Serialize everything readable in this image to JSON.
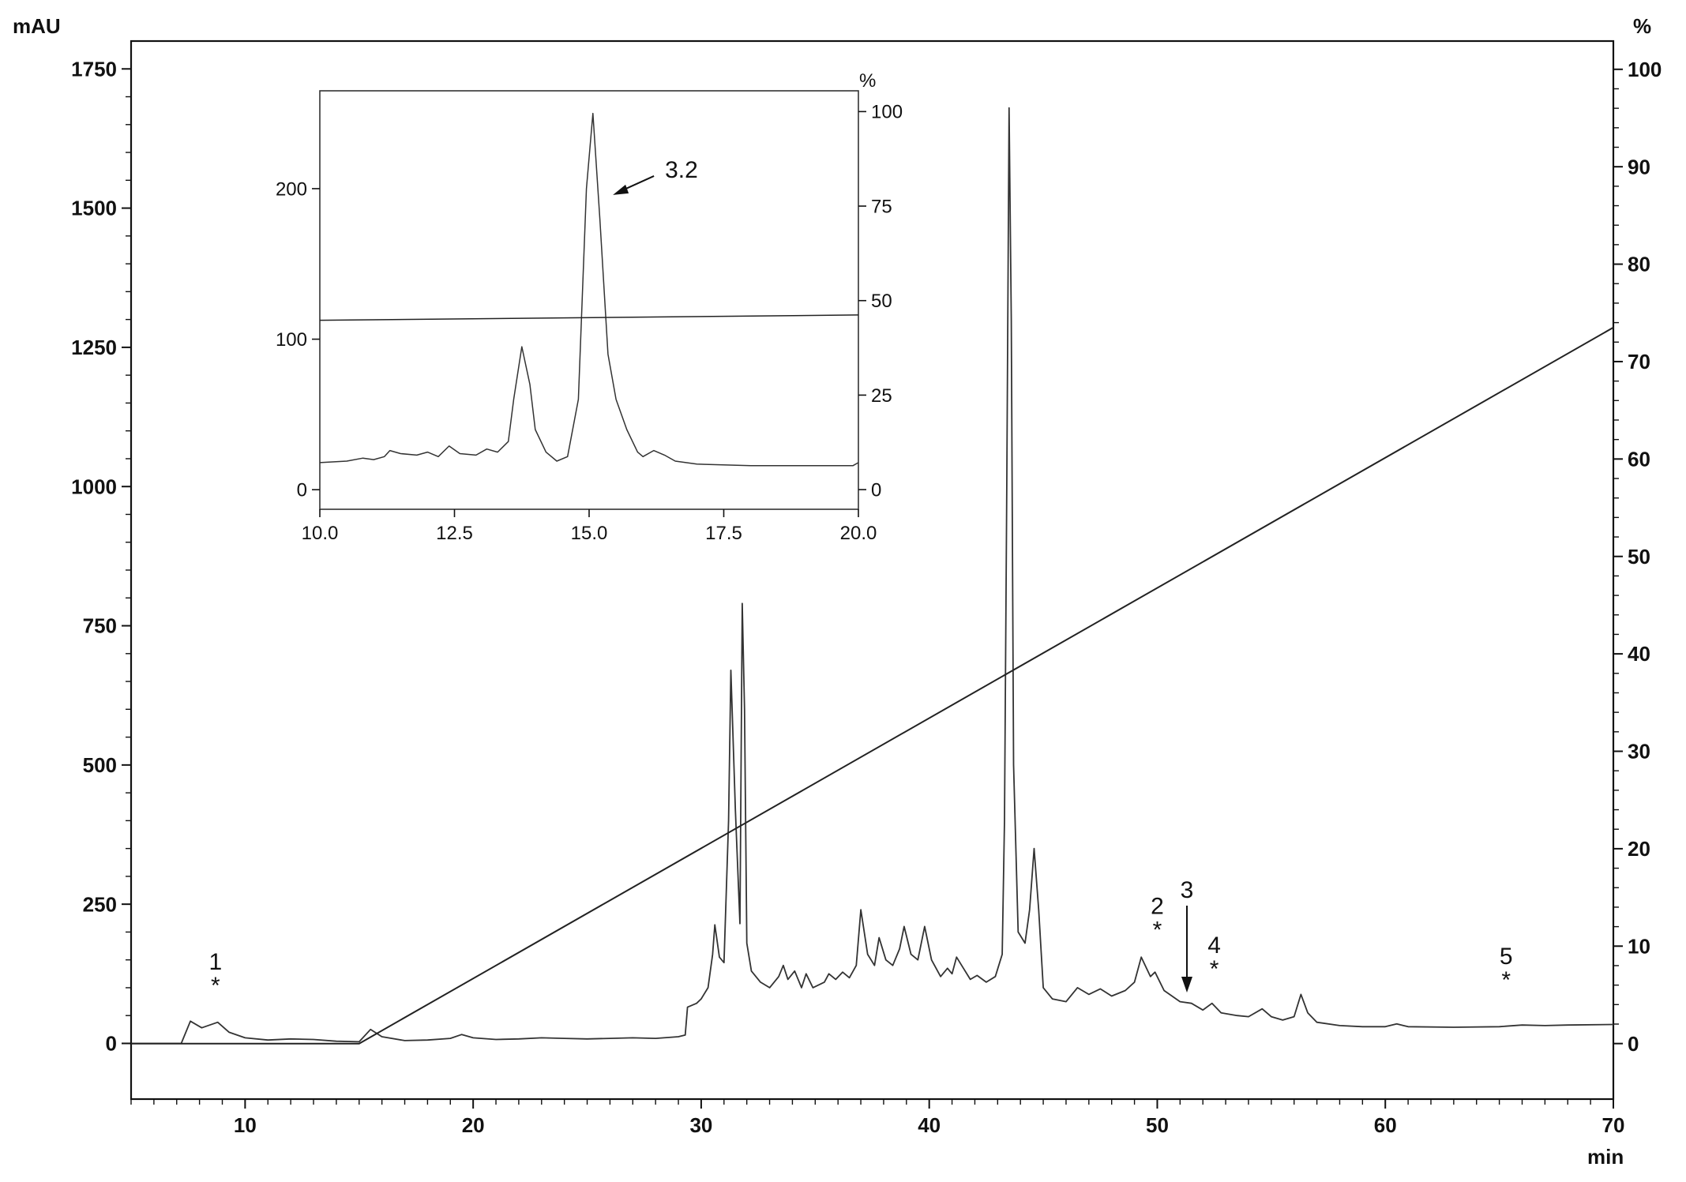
{
  "chart_data": [
    {
      "type": "line",
      "title": "",
      "xlabel": "min",
      "ylabel": "mAU",
      "y2label": "%",
      "xlim": [
        5,
        70
      ],
      "ylim": [
        -100,
        1800
      ],
      "y2lim": [
        -5.7,
        102.9
      ],
      "xticks": [
        10,
        20,
        30,
        40,
        50,
        60,
        70
      ],
      "yticks": [
        0,
        250,
        500,
        750,
        1000,
        1250,
        1500,
        1750
      ],
      "y2ticks": [
        0,
        10,
        20,
        30,
        40,
        50,
        60,
        70,
        80,
        90,
        100
      ],
      "series": [
        {
          "role": "chromatogram",
          "points": [
            [
              5,
              0
            ],
            [
              7.2,
              0
            ],
            [
              7.6,
              40
            ],
            [
              8.1,
              28
            ],
            [
              8.8,
              38
            ],
            [
              9.3,
              20
            ],
            [
              10,
              10
            ],
            [
              11,
              6
            ],
            [
              12,
              8
            ],
            [
              13,
              7
            ],
            [
              14,
              4
            ],
            [
              15,
              3
            ],
            [
              15.5,
              25
            ],
            [
              16,
              12
            ],
            [
              17,
              5
            ],
            [
              18,
              6
            ],
            [
              19,
              9
            ],
            [
              19.5,
              16
            ],
            [
              20,
              10
            ],
            [
              21,
              7
            ],
            [
              22,
              8
            ],
            [
              23,
              10
            ],
            [
              24,
              9
            ],
            [
              25,
              8
            ],
            [
              26,
              9
            ],
            [
              27,
              10
            ],
            [
              28,
              9
            ],
            [
              29,
              12
            ],
            [
              29.3,
              15
            ],
            [
              29.4,
              65
            ],
            [
              29.8,
              72
            ],
            [
              30,
              80
            ],
            [
              30.3,
              100
            ],
            [
              30.5,
              160
            ],
            [
              30.6,
              213
            ],
            [
              30.8,
              155
            ],
            [
              31,
              145
            ],
            [
              31.2,
              400
            ],
            [
              31.3,
              670
            ],
            [
              31.5,
              420
            ],
            [
              31.7,
              215
            ],
            [
              31.8,
              790
            ],
            [
              31.9,
              600
            ],
            [
              32,
              180
            ],
            [
              32.2,
              130
            ],
            [
              32.6,
              110
            ],
            [
              33,
              100
            ],
            [
              33.4,
              120
            ],
            [
              33.6,
              140
            ],
            [
              33.8,
              115
            ],
            [
              34.1,
              130
            ],
            [
              34.4,
              100
            ],
            [
              34.6,
              125
            ],
            [
              34.9,
              100
            ],
            [
              35.4,
              110
            ],
            [
              35.6,
              125
            ],
            [
              35.9,
              115
            ],
            [
              36.2,
              128
            ],
            [
              36.5,
              118
            ],
            [
              36.8,
              140
            ],
            [
              37,
              240
            ],
            [
              37.3,
              160
            ],
            [
              37.6,
              140
            ],
            [
              37.8,
              190
            ],
            [
              38.1,
              150
            ],
            [
              38.4,
              140
            ],
            [
              38.7,
              170
            ],
            [
              38.9,
              210
            ],
            [
              39.2,
              160
            ],
            [
              39.5,
              150
            ],
            [
              39.8,
              210
            ],
            [
              40.1,
              150
            ],
            [
              40.5,
              120
            ],
            [
              40.8,
              135
            ],
            [
              41,
              125
            ],
            [
              41.2,
              155
            ],
            [
              41.5,
              135
            ],
            [
              41.8,
              115
            ],
            [
              42.1,
              122
            ],
            [
              42.5,
              110
            ],
            [
              42.9,
              120
            ],
            [
              43.2,
              160
            ],
            [
              43.3,
              400
            ],
            [
              43.4,
              1000
            ],
            [
              43.5,
              1680
            ],
            [
              43.6,
              1300
            ],
            [
              43.7,
              500
            ],
            [
              43.9,
              200
            ],
            [
              44.2,
              180
            ],
            [
              44.4,
              240
            ],
            [
              44.6,
              350
            ],
            [
              44.8,
              240
            ],
            [
              45,
              100
            ],
            [
              45.4,
              80
            ],
            [
              46,
              75
            ],
            [
              46.5,
              100
            ],
            [
              47,
              88
            ],
            [
              47.5,
              98
            ],
            [
              48,
              85
            ],
            [
              48.6,
              95
            ],
            [
              49,
              110
            ],
            [
              49.3,
              155
            ],
            [
              49.7,
              120
            ],
            [
              49.9,
              128
            ],
            [
              50.3,
              95
            ],
            [
              51,
              75
            ],
            [
              51.5,
              72
            ],
            [
              52,
              60
            ],
            [
              52.4,
              72
            ],
            [
              52.8,
              55
            ],
            [
              53.5,
              50
            ],
            [
              54,
              48
            ],
            [
              54.6,
              62
            ],
            [
              55,
              48
            ],
            [
              55.5,
              42
            ],
            [
              56,
              48
            ],
            [
              56.3,
              88
            ],
            [
              56.6,
              55
            ],
            [
              57,
              38
            ],
            [
              58,
              32
            ],
            [
              59,
              30
            ],
            [
              60,
              30
            ],
            [
              60.5,
              35
            ],
            [
              61,
              30
            ],
            [
              63,
              29
            ],
            [
              65,
              30
            ],
            [
              66,
              33
            ],
            [
              67,
              32
            ],
            [
              68,
              33
            ],
            [
              70,
              34
            ]
          ]
        },
        {
          "role": "gradient",
          "axis": "y2",
          "points": [
            [
              5,
              0
            ],
            [
              15,
              0
            ],
            [
              70,
              73.5
            ]
          ]
        }
      ],
      "annotations": [
        {
          "label": "1",
          "mark": "*",
          "x": 8.7,
          "y": 50
        },
        {
          "label": "2",
          "mark": "*",
          "x": 50,
          "y": 150
        },
        {
          "label": "3",
          "mark": "arrow-down",
          "x": 51.3,
          "y": 80
        },
        {
          "label": "4",
          "mark": "*",
          "x": 52.5,
          "y": 80
        },
        {
          "label": "5",
          "mark": "*",
          "x": 65.3,
          "y": 60
        }
      ]
    },
    {
      "type": "line",
      "title": "",
      "xlabel": "",
      "ylabel": "",
      "y2label": "%",
      "xlim": [
        10,
        20
      ],
      "ylim": [
        -13,
        265
      ],
      "y2lim": [
        -5.2,
        105.5
      ],
      "xticks": [
        "10.0",
        "12.5",
        "15.0",
        "17.5",
        "20.0"
      ],
      "yticks": [
        0,
        100,
        200
      ],
      "y2ticks": [
        0,
        25,
        50,
        75,
        100
      ],
      "series": [
        {
          "role": "chromatogram",
          "points": [
            [
              10,
              18
            ],
            [
              10.5,
              19
            ],
            [
              10.8,
              21
            ],
            [
              11,
              20
            ],
            [
              11.2,
              22
            ],
            [
              11.3,
              26
            ],
            [
              11.5,
              24
            ],
            [
              11.8,
              23
            ],
            [
              12,
              25
            ],
            [
              12.2,
              22
            ],
            [
              12.4,
              29
            ],
            [
              12.6,
              24
            ],
            [
              12.9,
              23
            ],
            [
              13.1,
              27
            ],
            [
              13.3,
              25
            ],
            [
              13.5,
              32
            ],
            [
              13.6,
              60
            ],
            [
              13.75,
              95
            ],
            [
              13.9,
              70
            ],
            [
              14,
              40
            ],
            [
              14.2,
              25
            ],
            [
              14.4,
              19
            ],
            [
              14.6,
              22
            ],
            [
              14.8,
              60
            ],
            [
              14.95,
              200
            ],
            [
              15.07,
              250
            ],
            [
              15.2,
              180
            ],
            [
              15.35,
              90
            ],
            [
              15.5,
              60
            ],
            [
              15.7,
              40
            ],
            [
              15.9,
              25
            ],
            [
              16,
              22
            ],
            [
              16.2,
              26
            ],
            [
              16.4,
              23
            ],
            [
              16.6,
              19
            ],
            [
              17,
              17
            ],
            [
              18,
              16
            ],
            [
              19,
              16
            ],
            [
              19.9,
              16
            ],
            [
              20,
              18
            ]
          ]
        },
        {
          "role": "gradient",
          "axis": "y2",
          "points": [
            [
              10,
              44.8
            ],
            [
              20,
              46.2
            ]
          ]
        }
      ],
      "annotations": [
        {
          "label": "3.2",
          "mark": "arrow",
          "x": 15.5,
          "y": 200
        }
      ]
    }
  ]
}
